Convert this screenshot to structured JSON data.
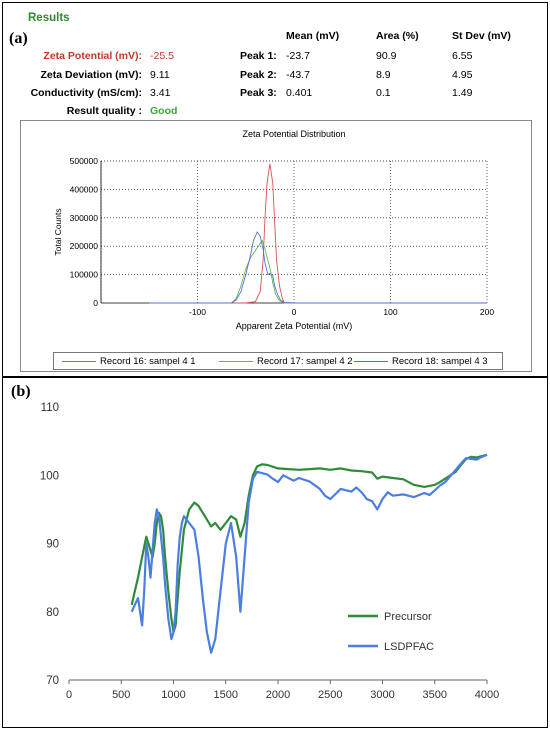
{
  "panel_a": {
    "letter": "(a)",
    "results_title": "Results",
    "colors": {
      "results_green": "#2e8b2e",
      "zeta_label_red": "#c0392b",
      "quality_green": "#3aa83a"
    },
    "summary": [
      {
        "label": "Zeta Potential (mV):",
        "value": "-25.5"
      },
      {
        "label": "Zeta Deviation (mV):",
        "value": "9.11"
      },
      {
        "label": "Conductivity  (mS/cm):",
        "value": "3.41"
      }
    ],
    "quality": {
      "label": "Result quality :",
      "value": "Good"
    },
    "peaks_header": {
      "mean": "Mean (mV)",
      "area": "Area (%)",
      "stdev": "St Dev (mV)"
    },
    "peaks": [
      {
        "label": "Peak 1:",
        "mean": "-23.7",
        "area": "90.9",
        "stdev": "6.55"
      },
      {
        "label": "Peak 2:",
        "mean": "-43.7",
        "area": "8.9",
        "stdev": "4.95"
      },
      {
        "label": "Peak 3:",
        "mean": "0.401",
        "area": "0.1",
        "stdev": "1.49"
      }
    ]
  },
  "panel_b": {
    "letter": "(b)"
  },
  "chart_data": [
    {
      "type": "line",
      "title": "Zeta Potential Distribution",
      "xlabel": "Apparent Zeta Potential (mV)",
      "ylabel": "Total Counts",
      "xlim": [
        -200,
        200
      ],
      "ylim": [
        0,
        500000
      ],
      "xticks": [
        "-100",
        "0",
        "100",
        "200"
      ],
      "yticks": [
        "0",
        "100000",
        "200000",
        "300000",
        "400000",
        "500000"
      ],
      "grid": true,
      "legend_position": "bottom",
      "series": [
        {
          "name": "Record 16: sampel 4 1",
          "color": "#d9534f",
          "x": [
            -150,
            -50,
            -40,
            -35,
            -32,
            -30,
            -28,
            -25,
            -22,
            -20,
            -18,
            -15,
            -12,
            -10,
            0,
            200
          ],
          "y": [
            0,
            0,
            5000,
            40000,
            150000,
            300000,
            420000,
            490000,
            420000,
            280000,
            150000,
            60000,
            15000,
            2000,
            0,
            0
          ]
        },
        {
          "name": "Record 17: sampel 4 2",
          "color": "#5cb85c",
          "x": [
            -150,
            -65,
            -60,
            -55,
            -50,
            -45,
            -40,
            -36,
            -33,
            -30,
            -27,
            -24,
            -22,
            -19,
            -15,
            -10,
            0,
            200
          ],
          "y": [
            0,
            0,
            15000,
            60000,
            120000,
            160000,
            185000,
            205000,
            220000,
            190000,
            150000,
            110000,
            70000,
            30000,
            8000,
            0,
            0,
            0
          ]
        },
        {
          "name": "Record 18: sampel 4 3",
          "color": "#5a6fd6",
          "x": [
            -150,
            -65,
            -60,
            -55,
            -50,
            -45,
            -42,
            -38,
            -35,
            -32,
            -30,
            -27,
            -25,
            -22,
            -20,
            -17,
            -14,
            -10,
            0,
            200
          ],
          "y": [
            0,
            0,
            10000,
            40000,
            100000,
            170000,
            220000,
            250000,
            235000,
            190000,
            140000,
            100000,
            105000,
            95000,
            60000,
            30000,
            10000,
            2000,
            0,
            0
          ]
        }
      ]
    },
    {
      "type": "line",
      "xlim": [
        0,
        4000
      ],
      "ylim": [
        70,
        110
      ],
      "xticks": [
        "0",
        "500",
        "1000",
        "1500",
        "2000",
        "2500",
        "3000",
        "3500",
        "4000"
      ],
      "yticks": [
        "70",
        "80",
        "90",
        "100",
        "110"
      ],
      "grid": false,
      "legend_position": "bottom-right",
      "series": [
        {
          "name": "Precursor",
          "color": "#2e8b3a",
          "x": [
            600,
            630,
            660,
            680,
            700,
            720,
            740,
            760,
            780,
            800,
            820,
            840,
            860,
            880,
            900,
            920,
            950,
            980,
            1000,
            1020,
            1040,
            1060,
            1080,
            1100,
            1150,
            1200,
            1240,
            1280,
            1320,
            1360,
            1400,
            1450,
            1500,
            1550,
            1600,
            1640,
            1680,
            1720,
            1760,
            1800,
            1850,
            1900,
            2000,
            2100,
            2200,
            2300,
            2400,
            2500,
            2600,
            2700,
            2800,
            2900,
            2950,
            3000,
            3100,
            3200,
            3300,
            3400,
            3500,
            3550,
            3600,
            3700,
            3750,
            3800,
            3850,
            3900,
            3950,
            4000
          ],
          "y": [
            81,
            83,
            85,
            86.5,
            88,
            89.5,
            91,
            90,
            89,
            88,
            90,
            93,
            94.5,
            94,
            92,
            88,
            83,
            79,
            77,
            78,
            82,
            86,
            89,
            92,
            95,
            96,
            95.5,
            94.5,
            93.5,
            92.5,
            93,
            92,
            93,
            94,
            93.5,
            91,
            93,
            97,
            100,
            101.3,
            101.6,
            101.5,
            101,
            100.9,
            100.8,
            100.9,
            101,
            100.8,
            101,
            100.7,
            100.6,
            100.4,
            99.5,
            99.8,
            99.6,
            99.4,
            98.6,
            98.3,
            98.6,
            99,
            99.5,
            100.5,
            101.5,
            102.4,
            102.7,
            102.6,
            102.8,
            103
          ]
        },
        {
          "name": "LSDPFAC",
          "color": "#4a7fe0",
          "x": [
            600,
            630,
            660,
            680,
            700,
            720,
            740,
            760,
            780,
            800,
            820,
            840,
            860,
            880,
            900,
            920,
            950,
            980,
            1000,
            1020,
            1040,
            1060,
            1080,
            1100,
            1150,
            1200,
            1240,
            1280,
            1320,
            1360,
            1400,
            1450,
            1500,
            1550,
            1600,
            1640,
            1680,
            1720,
            1760,
            1800,
            1850,
            1900,
            1950,
            2000,
            2050,
            2100,
            2150,
            2200,
            2300,
            2400,
            2450,
            2500,
            2600,
            2700,
            2750,
            2800,
            2850,
            2900,
            2950,
            3000,
            3050,
            3100,
            3200,
            3300,
            3400,
            3450,
            3500,
            3550,
            3600,
            3700,
            3750,
            3800,
            3850,
            3900,
            3950,
            4000
          ],
          "y": [
            80,
            81,
            82,
            80,
            78,
            83,
            90,
            88,
            85,
            89,
            93,
            95,
            94,
            91,
            88,
            84,
            79,
            76,
            77,
            80,
            87,
            91,
            93,
            94,
            93,
            92,
            88,
            82,
            77,
            74,
            76,
            83,
            90,
            93,
            88,
            80,
            88,
            96,
            99.5,
            100.5,
            100.3,
            100.1,
            99.5,
            99,
            100,
            99.6,
            99.2,
            99.6,
            99.1,
            98,
            97,
            96.5,
            98,
            97.6,
            98.2,
            97.5,
            96.5,
            96.2,
            95,
            96.5,
            97.5,
            97,
            97.2,
            96.8,
            97.4,
            97.1,
            97.8,
            98.5,
            99,
            100.8,
            101.7,
            102.5,
            102.4,
            102.3,
            102.7,
            103
          ]
        }
      ]
    }
  ]
}
